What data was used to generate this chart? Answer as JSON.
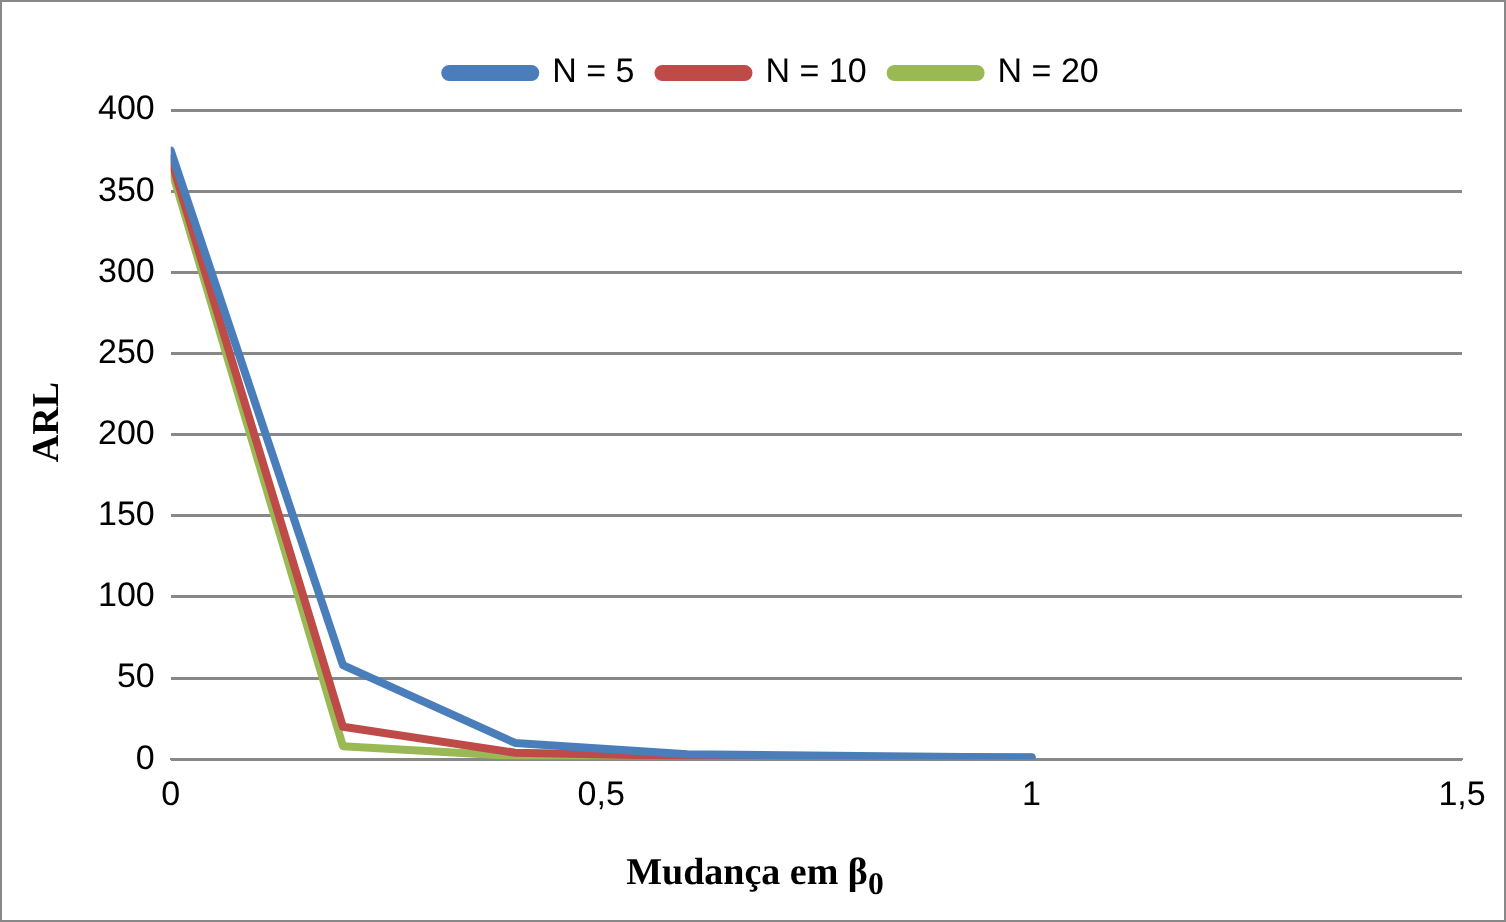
{
  "chart_data": {
    "type": "line",
    "xlabel": "Mudança em β$_{0}$",
    "ylabel": "ARL",
    "x": [
      0,
      0.2,
      0.4,
      0.6,
      0.8,
      1
    ],
    "series": [
      {
        "name": "N = 5",
        "color": "#4a7ebb",
        "values": [
          375,
          58,
          10,
          3,
          2,
          1
        ]
      },
      {
        "name": "N = 10",
        "color": "#be4b48",
        "values": [
          370,
          20,
          4,
          2,
          1,
          1
        ]
      },
      {
        "name": "N = 20",
        "color": "#98b954",
        "values": [
          365,
          8,
          2,
          1,
          1,
          1
        ]
      }
    ],
    "xlim": [
      0,
      1.5
    ],
    "xticks": [
      0,
      {
        "value": 0.5,
        "label": "0,5"
      },
      1,
      {
        "value": 1.5,
        "label": "1,5"
      }
    ],
    "ylim": [
      0,
      400
    ],
    "yticks": [
      0,
      50,
      100,
      150,
      200,
      250,
      300,
      350,
      400
    ],
    "grid": "y",
    "legend": "top",
    "marker": "none",
    "line_style": "solid"
  }
}
